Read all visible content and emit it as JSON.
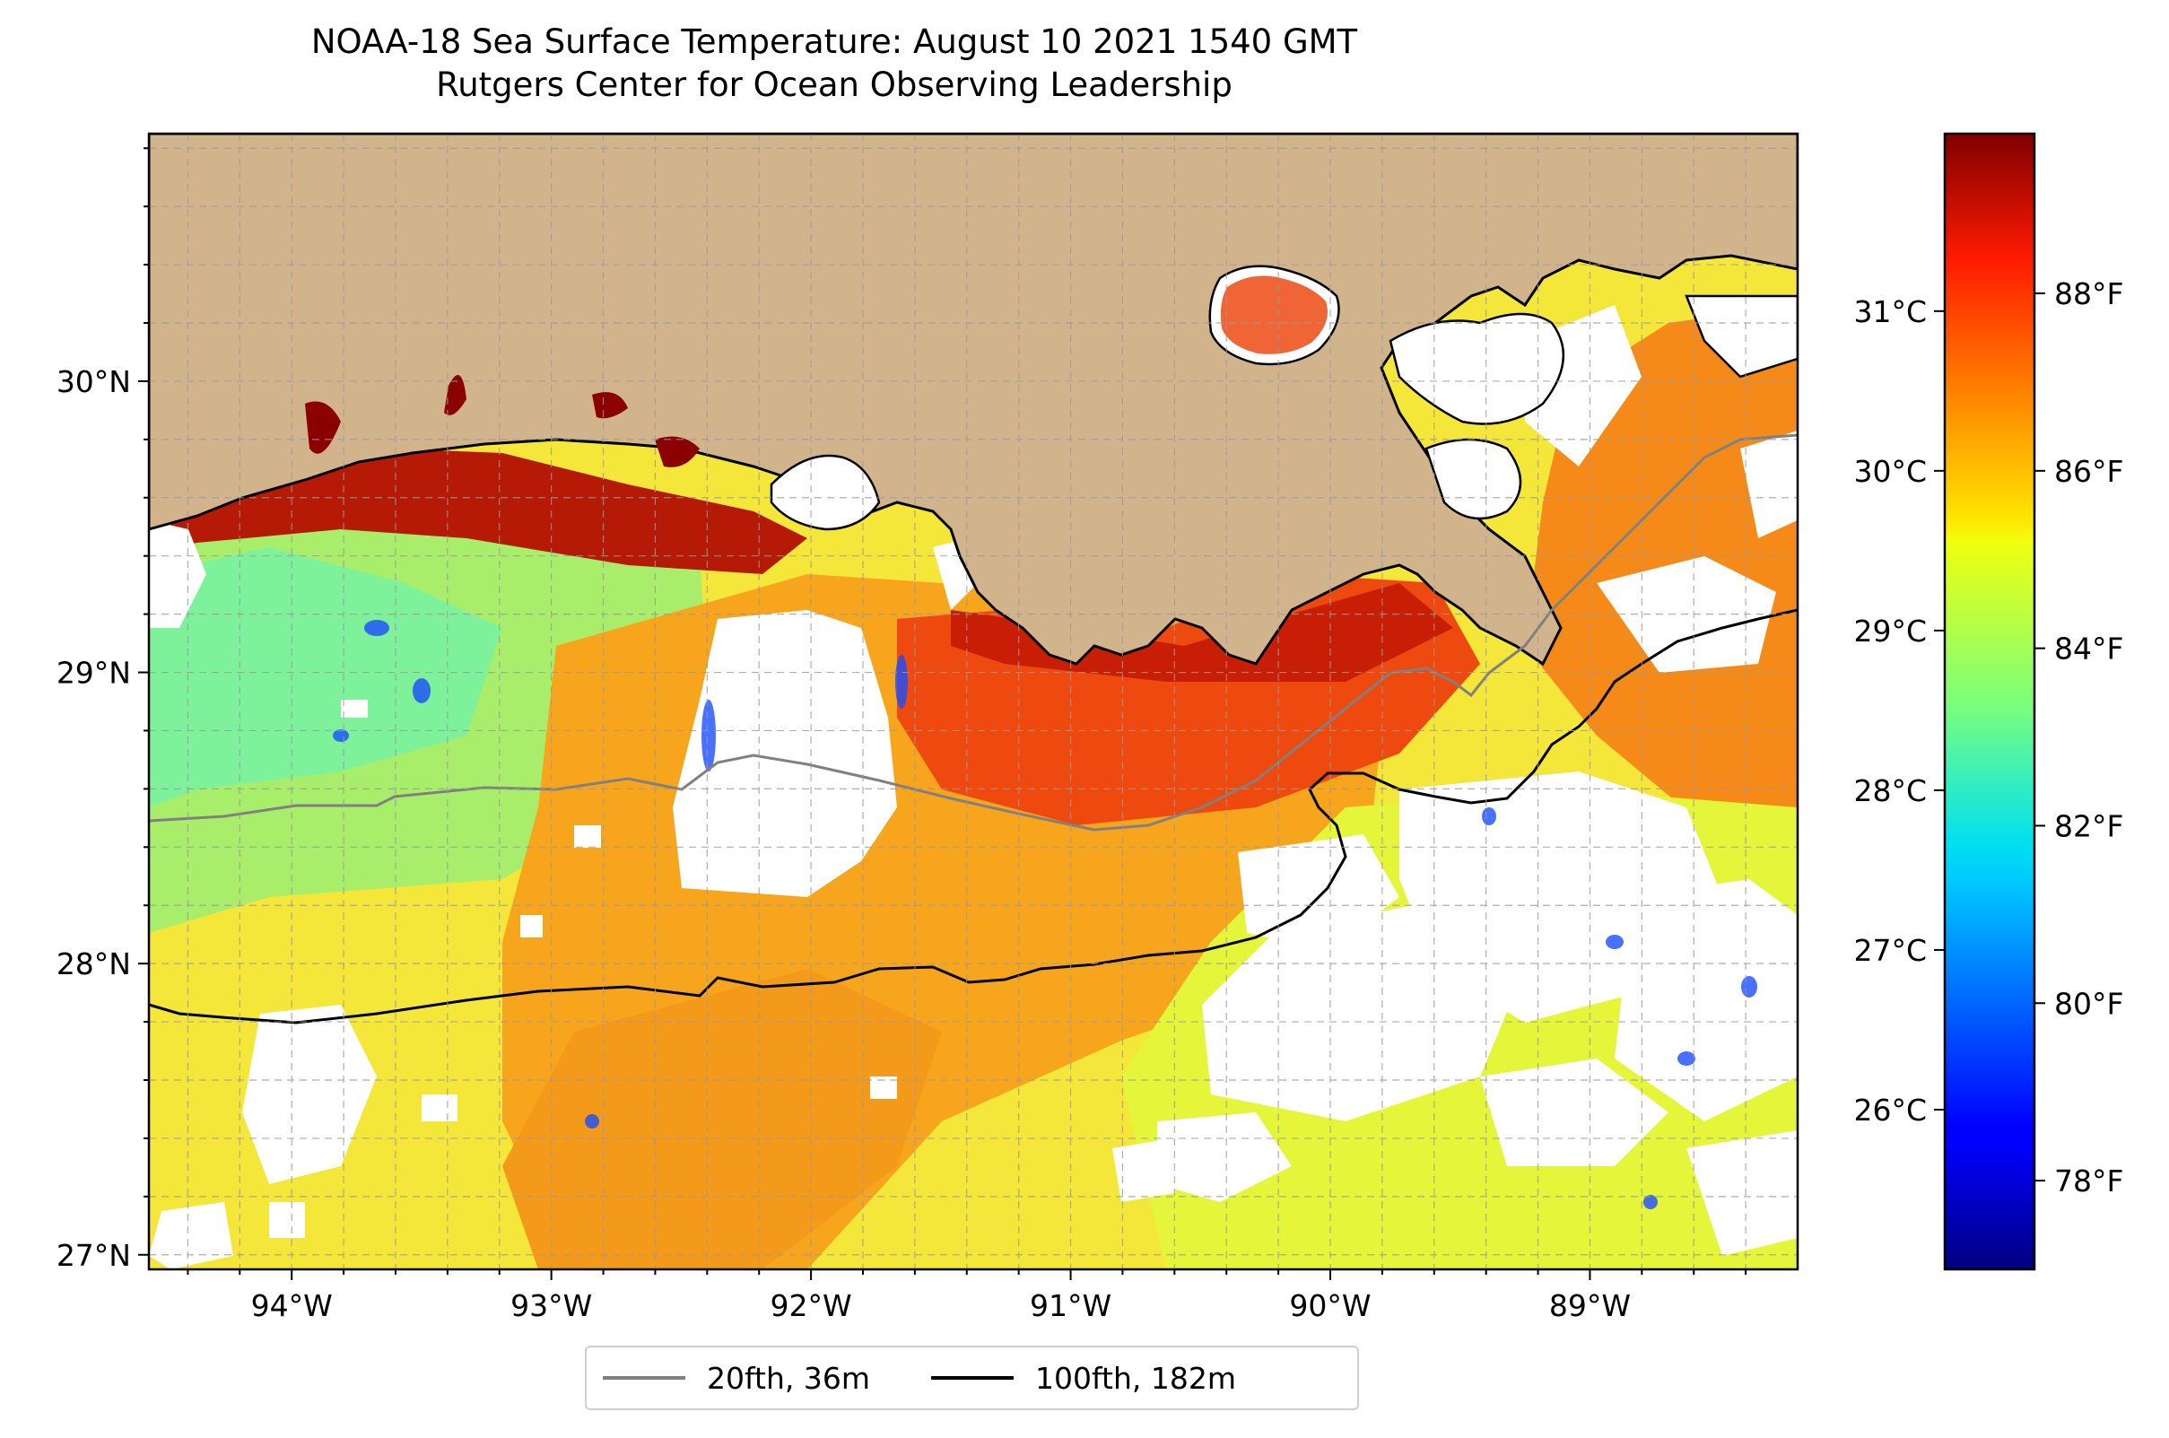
{
  "title": {
    "line1": "NOAA-18 Sea Surface Temperature: August 10 2021 1540 GMT",
    "line2": "Rutgers Center for Ocean Observing Leadership"
  },
  "map": {
    "extent": {
      "lon_min": -94.55,
      "lon_max": -88.2,
      "lat_min": 26.95,
      "lat_max": 30.85
    },
    "land_color": "#d2b48c",
    "gridlines": true,
    "lon_ticks": [
      {
        "value": -94,
        "label": "94°W"
      },
      {
        "value": -93,
        "label": "93°W"
      },
      {
        "value": -92,
        "label": "92°W"
      },
      {
        "value": -91,
        "label": "91°W"
      },
      {
        "value": -90,
        "label": "90°W"
      },
      {
        "value": -89,
        "label": "89°W"
      }
    ],
    "lat_ticks": [
      {
        "value": 30,
        "label": "30°N"
      },
      {
        "value": 29,
        "label": "29°N"
      },
      {
        "value": 28,
        "label": "28°N"
      },
      {
        "value": 27,
        "label": "27°N"
      }
    ]
  },
  "colorbar": {
    "colormap": "jet",
    "range_f": [
      77.0,
      89.8
    ],
    "celsius_ticks": [
      {
        "value": 31,
        "label": "31°C"
      },
      {
        "value": 30,
        "label": "30°C"
      },
      {
        "value": 29,
        "label": "29°C"
      },
      {
        "value": 28,
        "label": "28°C"
      },
      {
        "value": 27,
        "label": "27°C"
      },
      {
        "value": 26,
        "label": "26°C"
      }
    ],
    "fahrenheit_ticks": [
      {
        "value": 88,
        "label": "88°F"
      },
      {
        "value": 86,
        "label": "86°F"
      },
      {
        "value": 84,
        "label": "84°F"
      },
      {
        "value": 82,
        "label": "82°F"
      },
      {
        "value": 80,
        "label": "80°F"
      },
      {
        "value": 78,
        "label": "78°F"
      }
    ]
  },
  "legend": {
    "items": [
      {
        "label": "20fth, 36m",
        "color": "#808080"
      },
      {
        "label": "100fth, 182m",
        "color": "#000000"
      }
    ]
  }
}
